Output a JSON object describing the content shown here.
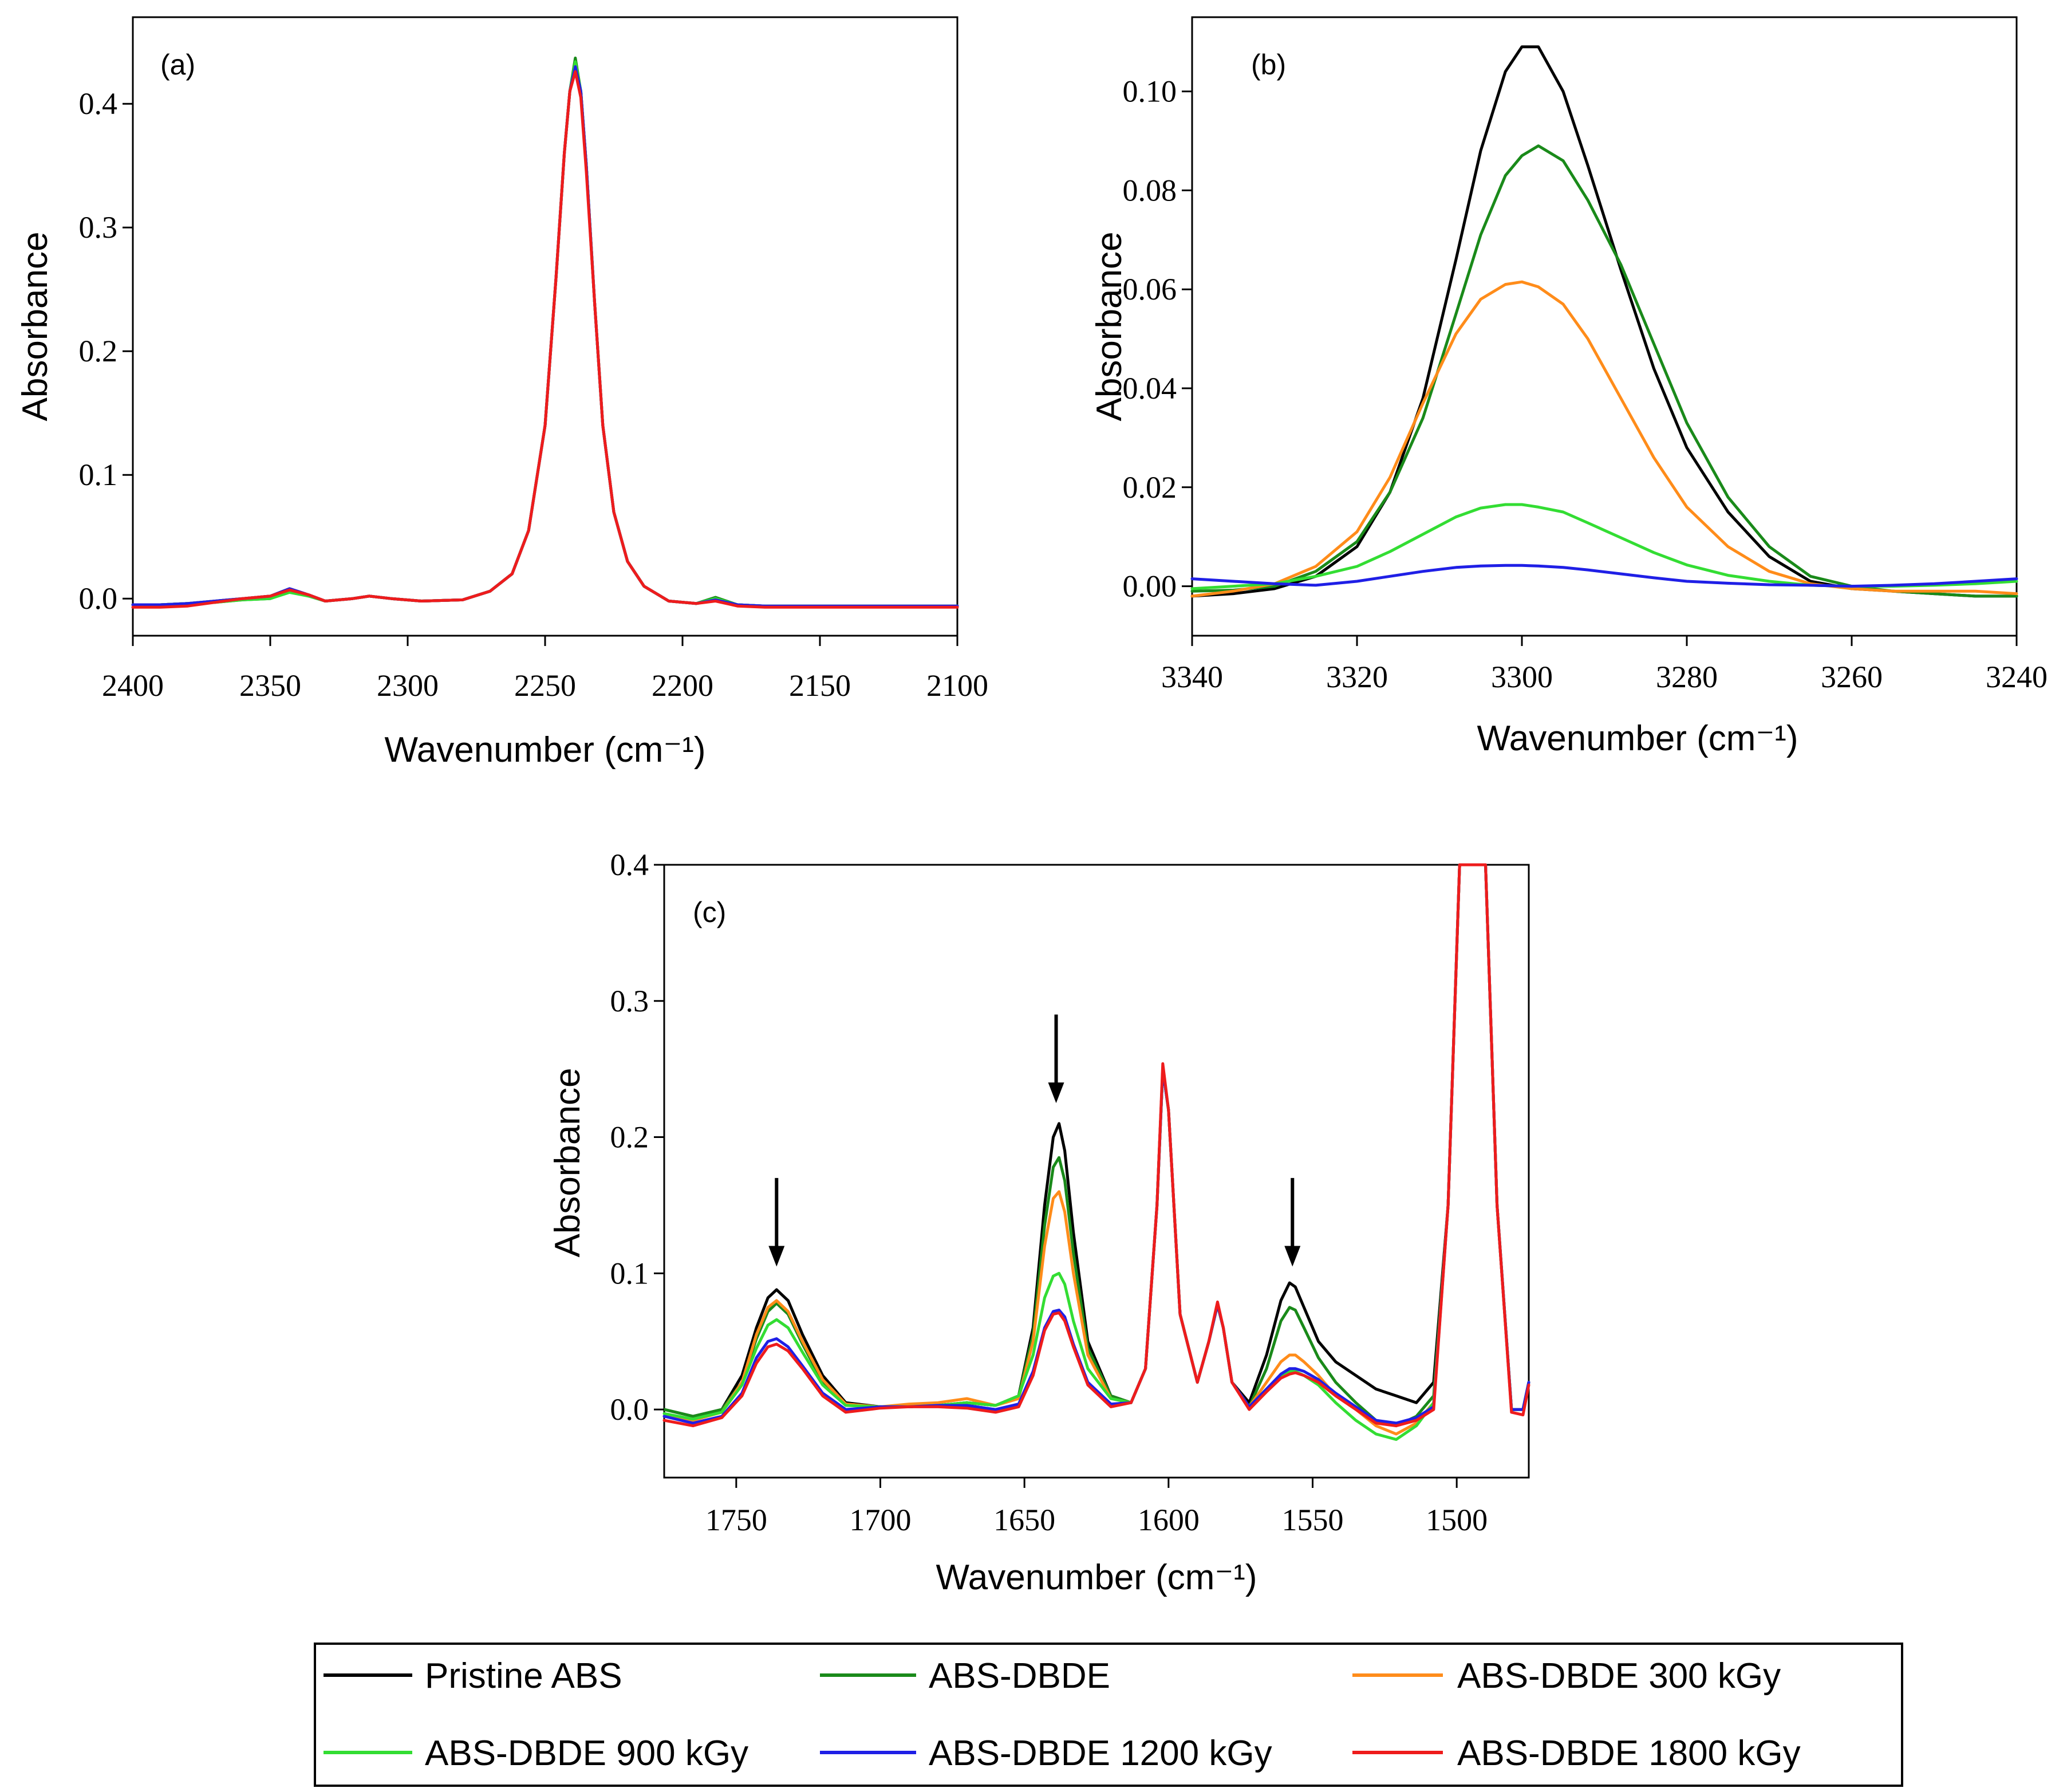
{
  "series_styles": [
    {
      "name": "Pristine ABS",
      "color": "#000000"
    },
    {
      "name": "ABS-DBDE",
      "color": "#1a8a1a"
    },
    {
      "name": "ABS-DBDE 300 kGy",
      "color": "#ff8c1a"
    },
    {
      "name": "ABS-DBDE 900 kGy",
      "color": "#33dd33"
    },
    {
      "name": "ABS-DBDE 1200 kGy",
      "color": "#1f1fe6"
    },
    {
      "name": "ABS-DBDE 1800 kGy",
      "color": "#ee1c1c"
    }
  ],
  "chart_data": [
    {
      "type": "line",
      "panel_label": "(a)",
      "title": "",
      "xlabel": "Wavenumber (cm⁻¹)",
      "ylabel": "Absorbance",
      "xlim": [
        2400,
        2100
      ],
      "ylim": [
        -0.03,
        0.47
      ],
      "xticks": [
        2400,
        2350,
        2300,
        2250,
        2200,
        2150,
        2100
      ],
      "xtick_labels": [
        "2400",
        "2350",
        "2300",
        "2250",
        "2200",
        "2150",
        "2100"
      ],
      "yticks": [
        0.0,
        0.1,
        0.2,
        0.3,
        0.4
      ],
      "ytick_labels": [
        "0.0",
        "0.1",
        "0.2",
        "0.3",
        "0.4"
      ],
      "grid": false,
      "x": [
        2400,
        2390,
        2380,
        2370,
        2360,
        2350,
        2343,
        2336,
        2330,
        2320,
        2314,
        2306,
        2295,
        2280,
        2270,
        2262,
        2256,
        2250,
        2246,
        2243,
        2241,
        2239,
        2237,
        2235,
        2232,
        2229,
        2225,
        2220,
        2214,
        2205,
        2195,
        2188,
        2180,
        2170,
        2150,
        2125,
        2100
      ],
      "series": [
        {
          "name": "Pristine ABS",
          "values": [
            -0.005,
            -0.005,
            -0.004,
            -0.002,
            0.0,
            0.002,
            0.008,
            0.003,
            -0.002,
            0.0,
            0.002,
            0.0,
            -0.002,
            -0.001,
            0.006,
            0.02,
            0.055,
            0.14,
            0.26,
            0.36,
            0.41,
            0.432,
            0.41,
            0.35,
            0.24,
            0.14,
            0.07,
            0.03,
            0.01,
            -0.002,
            -0.004,
            -0.001,
            -0.005,
            -0.006,
            -0.006,
            -0.006,
            -0.006
          ]
        },
        {
          "name": "ABS-DBDE",
          "values": [
            -0.005,
            -0.005,
            -0.004,
            -0.003,
            -0.001,
            0.0,
            0.006,
            0.002,
            -0.002,
            0.0,
            0.002,
            0.0,
            -0.002,
            -0.001,
            0.006,
            0.02,
            0.055,
            0.14,
            0.26,
            0.36,
            0.41,
            0.437,
            0.41,
            0.35,
            0.24,
            0.14,
            0.07,
            0.03,
            0.01,
            -0.002,
            -0.004,
            0.001,
            -0.005,
            -0.006,
            -0.006,
            -0.006,
            -0.006
          ]
        },
        {
          "name": "ABS-DBDE 300 kGy",
          "values": [
            -0.005,
            -0.005,
            -0.004,
            -0.002,
            0.0,
            0.002,
            0.008,
            0.003,
            -0.002,
            0.0,
            0.002,
            0.0,
            -0.002,
            -0.001,
            0.006,
            0.02,
            0.055,
            0.14,
            0.26,
            0.36,
            0.41,
            0.431,
            0.41,
            0.35,
            0.24,
            0.14,
            0.07,
            0.03,
            0.01,
            -0.002,
            -0.004,
            -0.001,
            -0.005,
            -0.006,
            -0.006,
            -0.006,
            -0.006
          ]
        },
        {
          "name": "ABS-DBDE 900 kGy",
          "values": [
            -0.005,
            -0.005,
            -0.004,
            -0.003,
            -0.001,
            0.0,
            0.005,
            0.002,
            -0.002,
            0.0,
            0.002,
            0.0,
            -0.002,
            -0.001,
            0.006,
            0.02,
            0.055,
            0.14,
            0.26,
            0.36,
            0.41,
            0.434,
            0.41,
            0.35,
            0.24,
            0.14,
            0.07,
            0.03,
            0.01,
            -0.002,
            -0.004,
            0.0,
            -0.005,
            -0.006,
            -0.006,
            -0.006,
            -0.006
          ]
        },
        {
          "name": "ABS-DBDE 1200 kGy",
          "values": [
            -0.005,
            -0.005,
            -0.004,
            -0.002,
            0.0,
            0.002,
            0.008,
            0.003,
            -0.002,
            0.0,
            0.002,
            0.0,
            -0.002,
            -0.001,
            0.006,
            0.02,
            0.055,
            0.14,
            0.26,
            0.36,
            0.41,
            0.43,
            0.41,
            0.35,
            0.24,
            0.14,
            0.07,
            0.03,
            0.01,
            -0.002,
            -0.004,
            -0.001,
            -0.005,
            -0.006,
            -0.006,
            -0.006,
            -0.006
          ]
        },
        {
          "name": "ABS-DBDE 1800 kGy",
          "values": [
            -0.007,
            -0.007,
            -0.006,
            -0.003,
            0.0,
            0.002,
            0.007,
            0.003,
            -0.002,
            0.0,
            0.002,
            0.0,
            -0.002,
            -0.001,
            0.006,
            0.02,
            0.055,
            0.14,
            0.26,
            0.36,
            0.41,
            0.426,
            0.405,
            0.345,
            0.24,
            0.14,
            0.07,
            0.03,
            0.01,
            -0.002,
            -0.004,
            -0.002,
            -0.006,
            -0.007,
            -0.007,
            -0.007,
            -0.007
          ]
        }
      ]
    },
    {
      "type": "line",
      "panel_label": "(b)",
      "title": "",
      "xlabel": "Wavenumber (cm⁻¹)",
      "ylabel": "Absorbance",
      "xlim": [
        3340,
        3240
      ],
      "ylim": [
        -0.01,
        0.115
      ],
      "xticks": [
        3340,
        3320,
        3300,
        3280,
        3260,
        3240
      ],
      "xtick_labels": [
        "3340",
        "3320",
        "3300",
        "3280",
        "3260",
        "3240"
      ],
      "yticks": [
        0.0,
        0.02,
        0.04,
        0.06,
        0.08,
        0.1
      ],
      "ytick_labels": [
        "0.00",
        "0.02",
        "0.04",
        "0.06",
        "0.08",
        "0.10"
      ],
      "grid": false,
      "x": [
        3340,
        3335,
        3330,
        3325,
        3320,
        3316,
        3312,
        3308,
        3305,
        3302,
        3300,
        3298,
        3295,
        3292,
        3288,
        3284,
        3280,
        3275,
        3270,
        3265,
        3260,
        3255,
        3250,
        3245,
        3240
      ],
      "series": [
        {
          "name": "Pristine ABS",
          "values": [
            -0.002,
            -0.0015,
            -0.0005,
            0.002,
            0.008,
            0.019,
            0.038,
            0.066,
            0.088,
            0.104,
            0.109,
            0.109,
            0.1,
            0.085,
            0.064,
            0.044,
            0.028,
            0.015,
            0.006,
            0.001,
            -0.0005,
            -0.001,
            -0.0015,
            -0.002,
            -0.002
          ]
        },
        {
          "name": "ABS-DBDE",
          "values": [
            -0.001,
            -0.0008,
            0.0,
            0.003,
            0.009,
            0.019,
            0.034,
            0.055,
            0.071,
            0.083,
            0.087,
            0.089,
            0.086,
            0.078,
            0.065,
            0.049,
            0.033,
            0.018,
            0.008,
            0.002,
            0.0,
            -0.001,
            -0.0015,
            -0.002,
            -0.002
          ]
        },
        {
          "name": "ABS-DBDE 300 kGy",
          "values": [
            -0.002,
            -0.001,
            0.0005,
            0.004,
            0.011,
            0.022,
            0.037,
            0.051,
            0.058,
            0.061,
            0.0615,
            0.0605,
            0.057,
            0.05,
            0.038,
            0.026,
            0.016,
            0.008,
            0.003,
            0.0005,
            -0.0005,
            -0.001,
            -0.001,
            -0.001,
            -0.0015
          ]
        },
        {
          "name": "ABS-DBDE 900 kGy",
          "values": [
            -0.0005,
            0.0,
            0.0005,
            0.002,
            0.004,
            0.007,
            0.0105,
            0.014,
            0.0158,
            0.0165,
            0.0165,
            0.016,
            0.015,
            0.0128,
            0.0098,
            0.0068,
            0.0043,
            0.0022,
            0.001,
            0.0002,
            0.0,
            0.0,
            0.0002,
            0.0005,
            0.001
          ]
        },
        {
          "name": "ABS-DBDE 1200 kGy",
          "values": [
            0.0015,
            0.001,
            0.0005,
            0.0002,
            0.001,
            0.002,
            0.003,
            0.0038,
            0.0041,
            0.0042,
            0.0042,
            0.0041,
            0.0038,
            0.0033,
            0.0025,
            0.0017,
            0.001,
            0.0006,
            0.0003,
            0.0002,
            0.0,
            0.0002,
            0.0005,
            0.001,
            0.0015
          ]
        }
      ]
    },
    {
      "type": "line",
      "panel_label": "(c)",
      "title": "",
      "xlabel": "Wavenumber (cm⁻¹)",
      "ylabel": "Absorbance",
      "xlim": [
        1775,
        1475
      ],
      "ylim": [
        -0.05,
        0.4
      ],
      "xticks": [
        1750,
        1700,
        1650,
        1600,
        1550,
        1500
      ],
      "xtick_labels": [
        "1750",
        "1700",
        "1650",
        "1600",
        "1550",
        "1500"
      ],
      "yticks": [
        0.0,
        0.1,
        0.2,
        0.3,
        0.4
      ],
      "ytick_labels": [
        "0.0",
        "0.1",
        "0.2",
        "0.3",
        "0.4"
      ],
      "grid": false,
      "annotations": [
        {
          "type": "down-arrow",
          "x": 1736,
          "y_from": 0.17,
          "y_to": 0.105
        },
        {
          "type": "down-arrow",
          "x": 1639,
          "y_from": 0.29,
          "y_to": 0.225
        },
        {
          "type": "down-arrow",
          "x": 1557,
          "y_from": 0.17,
          "y_to": 0.105
        }
      ],
      "x": [
        1775,
        1765,
        1755,
        1748,
        1743,
        1739,
        1736,
        1732,
        1727,
        1720,
        1712,
        1700,
        1690,
        1680,
        1670,
        1660,
        1652,
        1647,
        1643,
        1640,
        1638,
        1636,
        1633,
        1628,
        1620,
        1613,
        1608,
        1604,
        1602,
        1600,
        1596,
        1590,
        1586,
        1583,
        1581,
        1578,
        1572,
        1566,
        1561,
        1558,
        1556,
        1553,
        1548,
        1542,
        1535,
        1528,
        1521,
        1514,
        1508,
        1503,
        1499,
        1497,
        1495,
        1492,
        1490,
        1486,
        1481,
        1477,
        1475
      ],
      "series": [
        {
          "name": "Pristine ABS",
          "values": [
            0.0,
            -0.005,
            0.0,
            0.025,
            0.06,
            0.082,
            0.088,
            0.08,
            0.055,
            0.025,
            0.005,
            0.002,
            0.002,
            0.003,
            0.005,
            0.003,
            0.01,
            0.06,
            0.15,
            0.2,
            0.21,
            0.19,
            0.13,
            0.05,
            0.01,
            0.005,
            0.03,
            0.15,
            0.25,
            0.22,
            0.07,
            0.02,
            0.05,
            0.077,
            0.06,
            0.02,
            0.005,
            0.04,
            0.08,
            0.093,
            0.09,
            0.075,
            0.05,
            0.035,
            0.025,
            0.015,
            0.01,
            0.005,
            0.02,
            0.15,
            0.4,
            0.4,
            0.4,
            0.4,
            0.4,
            0.15,
            0.0,
            0.0,
            0.02
          ]
        },
        {
          "name": "ABS-DBDE",
          "values": [
            0.0,
            -0.005,
            0.0,
            0.02,
            0.052,
            0.072,
            0.078,
            0.07,
            0.048,
            0.02,
            0.004,
            0.002,
            0.002,
            0.003,
            0.005,
            0.003,
            0.01,
            0.055,
            0.135,
            0.178,
            0.185,
            0.168,
            0.115,
            0.045,
            0.01,
            0.005,
            0.03,
            0.15,
            0.25,
            0.22,
            0.07,
            0.02,
            0.05,
            0.077,
            0.06,
            0.02,
            0.002,
            0.03,
            0.065,
            0.075,
            0.073,
            0.06,
            0.038,
            0.02,
            0.005,
            -0.008,
            -0.012,
            -0.005,
            0.01,
            0.15,
            0.4,
            0.4,
            0.4,
            0.4,
            0.4,
            0.15,
            0.0,
            0.0,
            0.02
          ]
        },
        {
          "name": "ABS-DBDE 300 kGy",
          "values": [
            -0.005,
            -0.008,
            -0.002,
            0.02,
            0.055,
            0.075,
            0.08,
            0.072,
            0.05,
            0.022,
            0.004,
            0.002,
            0.004,
            0.005,
            0.008,
            0.003,
            0.008,
            0.05,
            0.12,
            0.155,
            0.16,
            0.145,
            0.1,
            0.04,
            0.008,
            0.005,
            0.03,
            0.15,
            0.25,
            0.22,
            0.07,
            0.02,
            0.05,
            0.077,
            0.06,
            0.02,
            0.002,
            0.02,
            0.035,
            0.04,
            0.04,
            0.035,
            0.025,
            0.01,
            0.0,
            -0.012,
            -0.018,
            -0.01,
            0.005,
            0.15,
            0.4,
            0.4,
            0.4,
            0.4,
            0.4,
            0.15,
            0.0,
            0.0,
            0.02
          ]
        },
        {
          "name": "ABS-DBDE 900 kGy",
          "values": [
            -0.003,
            -0.007,
            -0.002,
            0.018,
            0.045,
            0.062,
            0.066,
            0.06,
            0.042,
            0.018,
            0.003,
            0.002,
            0.002,
            0.003,
            0.005,
            0.003,
            0.01,
            0.04,
            0.082,
            0.098,
            0.1,
            0.092,
            0.065,
            0.03,
            0.008,
            0.005,
            0.03,
            0.15,
            0.25,
            0.22,
            0.07,
            0.02,
            0.05,
            0.077,
            0.06,
            0.02,
            0.002,
            0.015,
            0.025,
            0.028,
            0.028,
            0.025,
            0.018,
            0.005,
            -0.008,
            -0.018,
            -0.022,
            -0.012,
            0.005,
            0.15,
            0.4,
            0.4,
            0.4,
            0.4,
            0.4,
            0.15,
            0.0,
            0.0,
            0.02
          ]
        },
        {
          "name": "ABS-DBDE 1200 kGy",
          "values": [
            -0.005,
            -0.01,
            -0.005,
            0.012,
            0.038,
            0.05,
            0.052,
            0.046,
            0.032,
            0.012,
            0.0,
            0.002,
            0.002,
            0.003,
            0.003,
            0.0,
            0.004,
            0.028,
            0.06,
            0.072,
            0.073,
            0.068,
            0.048,
            0.02,
            0.004,
            0.005,
            0.03,
            0.15,
            0.25,
            0.22,
            0.07,
            0.02,
            0.05,
            0.077,
            0.06,
            0.02,
            0.002,
            0.015,
            0.026,
            0.03,
            0.03,
            0.028,
            0.022,
            0.012,
            0.002,
            -0.008,
            -0.01,
            -0.006,
            0.002,
            0.15,
            0.4,
            0.4,
            0.4,
            0.4,
            0.4,
            0.15,
            0.0,
            0.0,
            0.02
          ]
        },
        {
          "name": "ABS-DBDE 1800 kGy",
          "values": [
            -0.008,
            -0.012,
            -0.006,
            0.01,
            0.034,
            0.046,
            0.048,
            0.043,
            0.03,
            0.01,
            -0.002,
            0.001,
            0.002,
            0.002,
            0.001,
            -0.002,
            0.002,
            0.025,
            0.058,
            0.07,
            0.071,
            0.065,
            0.046,
            0.018,
            0.002,
            0.005,
            0.03,
            0.15,
            0.254,
            0.22,
            0.07,
            0.02,
            0.05,
            0.079,
            0.06,
            0.02,
            0.0,
            0.013,
            0.023,
            0.026,
            0.027,
            0.025,
            0.02,
            0.01,
            0.0,
            -0.01,
            -0.012,
            -0.008,
            0.0,
            0.15,
            0.4,
            0.4,
            0.4,
            0.4,
            0.4,
            0.15,
            -0.002,
            -0.004,
            0.018
          ]
        }
      ]
    }
  ]
}
